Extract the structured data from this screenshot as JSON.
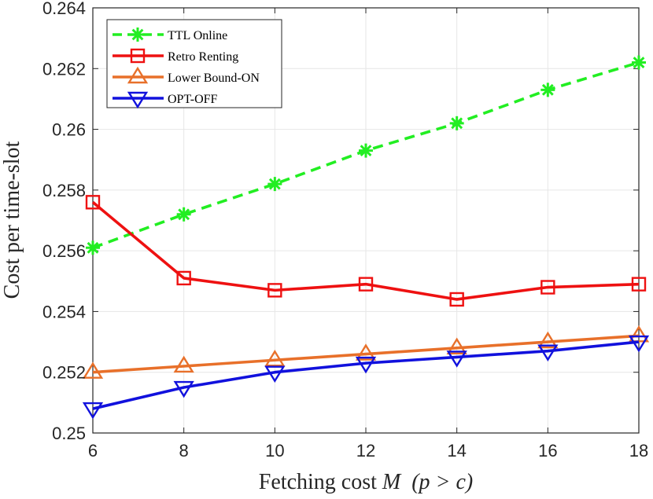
{
  "chart_data": {
    "type": "line",
    "xlabel": "Fetching cost M (p > c)",
    "xlabel_parts": {
      "prefix": "Fetching cost ",
      "var": "M",
      "cond": "(p > c)"
    },
    "ylabel": "Cost per time-slot",
    "x": [
      6,
      8,
      10,
      12,
      14,
      16,
      18
    ],
    "xlim": [
      6,
      18
    ],
    "ylim": [
      0.25,
      0.264
    ],
    "xticks": [
      "6",
      "8",
      "10",
      "12",
      "14",
      "16",
      "18"
    ],
    "yticks": [
      "0.25",
      "0.252",
      "0.254",
      "0.256",
      "0.258",
      "0.26",
      "0.262",
      "0.264"
    ],
    "grid": true,
    "legend_position": "top-left",
    "series": [
      {
        "name": "TTL Online",
        "color": "#22ee22",
        "marker": "asterisk",
        "dashed": true,
        "values": [
          0.2561,
          0.2572,
          0.2582,
          0.2593,
          0.2602,
          0.2613,
          0.2622
        ]
      },
      {
        "name": "Retro Renting",
        "color": "#ee1111",
        "marker": "square",
        "dashed": false,
        "values": [
          0.2576,
          0.2551,
          0.2547,
          0.2549,
          0.2544,
          0.2548,
          0.2549
        ]
      },
      {
        "name": "Lower Bound-ON",
        "color": "#e8702a",
        "marker": "triangle-up",
        "dashed": false,
        "values": [
          0.252,
          0.2522,
          0.2524,
          0.2526,
          0.2528,
          0.253,
          0.2532
        ]
      },
      {
        "name": "OPT-OFF",
        "color": "#1111dd",
        "marker": "triangle-down",
        "dashed": false,
        "values": [
          0.2508,
          0.2515,
          0.252,
          0.2523,
          0.2525,
          0.2527,
          0.253
        ]
      }
    ]
  }
}
